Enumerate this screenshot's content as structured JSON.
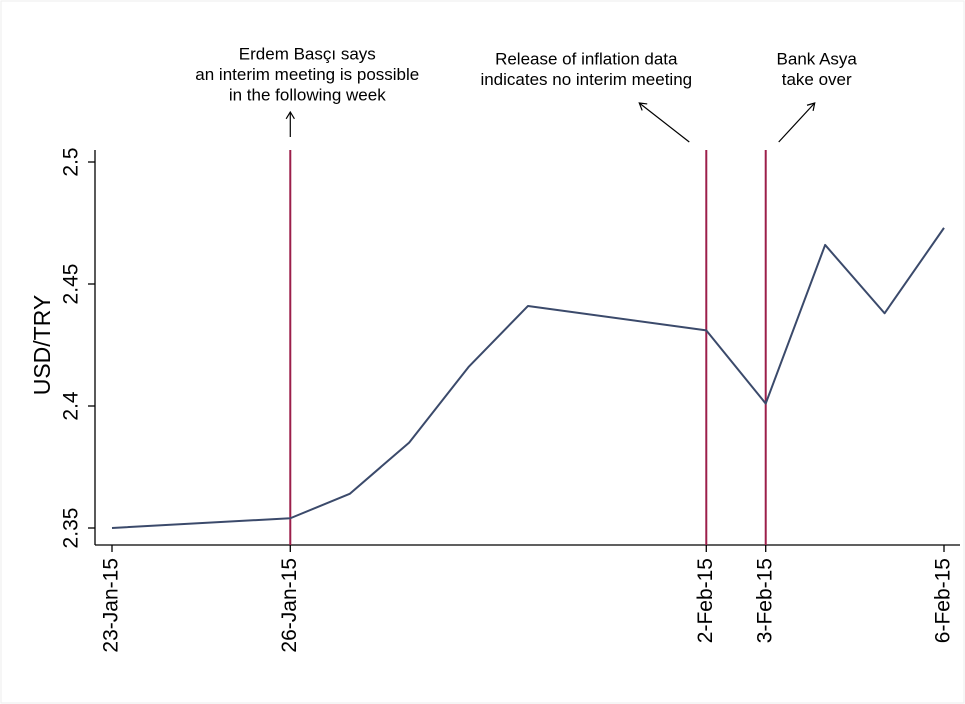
{
  "chart_data": {
    "type": "line",
    "ylabel": "USD/TRY",
    "x": [
      "23-Jan-15",
      "26-Jan-15",
      "27-Jan-15",
      "28-Jan-15",
      "29-Jan-15",
      "30-Jan-15",
      "2-Feb-15",
      "3-Feb-15",
      "4-Feb-15",
      "5-Feb-15",
      "6-Feb-15"
    ],
    "values": [
      2.35,
      2.354,
      2.364,
      2.385,
      2.416,
      2.441,
      2.431,
      2.401,
      2.466,
      2.438,
      2.473
    ],
    "color": "#3b4a6b",
    "xlim": [
      "23-Jan-15",
      "6-Feb-15"
    ],
    "xticks": [
      "23-Jan-15",
      "26-Jan-15",
      "2-Feb-15",
      "3-Feb-15",
      "6-Feb-15"
    ],
    "ylim": [
      2.35,
      2.5
    ],
    "yticks": [
      2.35,
      2.4,
      2.45,
      2.5
    ],
    "annotations": [
      {
        "x": "26-Jan-15",
        "color": "#9c1f4a",
        "text": [
          "Erdem Basçı says",
          "an interim meeting is possible",
          "in the following week"
        ]
      },
      {
        "x": "2-Feb-15",
        "color": "#9c1f4a",
        "text": [
          "Release of inflation data",
          "indicates no interim meeting"
        ]
      },
      {
        "x": "3-Feb-15",
        "color": "#9c1f4a",
        "text": [
          "Bank Asya",
          "take over"
        ]
      }
    ]
  }
}
